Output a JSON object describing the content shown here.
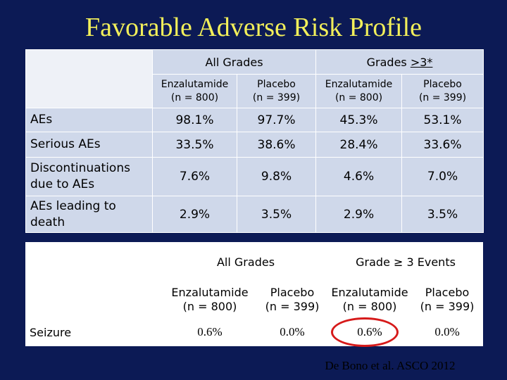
{
  "title": "Favorable Adverse Risk Profile",
  "table1": {
    "group_headers": [
      "All Grades",
      ">3*"
    ],
    "group2_prefix": "Grades ",
    "columns": [
      "Enzalutamide\n(n = 800)",
      "Placebo\n(n = 399)",
      "Enzalutamide\n(n = 800)",
      "Placebo\n(n = 399)"
    ],
    "rows": [
      {
        "label": "AEs",
        "values": [
          "98.1%",
          "97.7%",
          "45.3%",
          "53.1%"
        ]
      },
      {
        "label": "Serious AEs",
        "values": [
          "33.5%",
          "38.6%",
          "28.4%",
          "33.6%"
        ]
      },
      {
        "label": "Discontinuations due to AEs",
        "values": [
          "7.6%",
          "9.8%",
          "4.6%",
          "7.0%"
        ]
      },
      {
        "label": "AEs leading to death",
        "values": [
          "2.9%",
          "3.5%",
          "2.9%",
          "3.5%"
        ]
      }
    ]
  },
  "table2": {
    "group_headers": [
      "All Grades",
      "Grade ≥ 3 Events"
    ],
    "columns": [
      "Enzalutamide\n(n = 800)",
      "Placebo\n(n = 399)",
      "Enzalutamide\n(n = 800)",
      "Placebo\n(n = 399)"
    ],
    "row": {
      "label": "Seizure",
      "values": [
        "0.6%",
        "0.0%",
        "0.6%",
        "0.0%"
      ]
    }
  },
  "citation": "De Bono et al. ASCO 2012",
  "colors": {
    "background": "#0c1a55",
    "title": "#f2ef5a",
    "cell": "#cfd8ea",
    "highlight_circle": "#d61a1a"
  }
}
